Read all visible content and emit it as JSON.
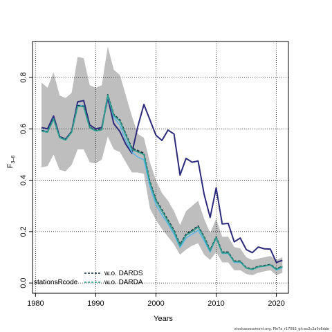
{
  "chart_data": {
    "type": "line",
    "xlabel": "Years",
    "ylabel_main": "F",
    "ylabel_sub": "3–6",
    "xlim": [
      1979.5,
      2022
    ],
    "ylim": [
      -0.04,
      0.94
    ],
    "x_ticks": [
      1980,
      1990,
      2000,
      2010,
      2020
    ],
    "y_ticks": [
      0.0,
      0.2,
      0.4,
      0.6,
      0.8
    ],
    "y_tick_labels": [
      "0.0",
      "0.2",
      "0.4",
      "0.6",
      "0.8"
    ],
    "grid": true,
    "legend": {
      "position": "bottom-left",
      "title": "stationsRcode",
      "entries": [
        "w.o. DARDS",
        "w.o. DARDA"
      ]
    },
    "credit": "stockassessment.org, Ple7a_r17092_git:ec2c2a0c6dde",
    "x": [
      1981,
      1982,
      1983,
      1984,
      1985,
      1986,
      1987,
      1988,
      1989,
      1990,
      1991,
      1992,
      1993,
      1994,
      1995,
      1996,
      1997,
      1998,
      1999,
      2000,
      2001,
      2002,
      2003,
      2004,
      2005,
      2006,
      2007,
      2008,
      2009,
      2010,
      2011,
      2012,
      2013,
      2014,
      2015,
      2016,
      2017,
      2018,
      2019,
      2020,
      2021
    ],
    "band": {
      "upper": [
        0.78,
        0.76,
        0.82,
        0.73,
        0.72,
        0.74,
        0.88,
        0.875,
        0.77,
        0.76,
        0.77,
        0.92,
        0.83,
        0.81,
        0.73,
        0.65,
        0.58,
        0.565,
        0.47,
        0.4,
        0.35,
        0.32,
        0.28,
        0.225,
        0.28,
        0.3,
        0.32,
        0.25,
        0.195,
        0.25,
        0.18,
        0.18,
        0.14,
        0.135,
        0.1,
        0.09,
        0.095,
        0.1,
        0.105,
        0.09,
        0.1
      ],
      "lower": [
        0.45,
        0.455,
        0.5,
        0.44,
        0.435,
        0.46,
        0.52,
        0.52,
        0.47,
        0.465,
        0.48,
        0.57,
        0.52,
        0.51,
        0.47,
        0.43,
        0.43,
        0.425,
        0.29,
        0.245,
        0.21,
        0.18,
        0.15,
        0.11,
        0.13,
        0.145,
        0.155,
        0.11,
        0.09,
        0.12,
        0.08,
        0.08,
        0.05,
        0.05,
        0.035,
        0.03,
        0.04,
        0.045,
        0.05,
        0.03,
        0.04
      ]
    },
    "series": [
      {
        "name": "",
        "color": "#2a2a7a",
        "style": "solid",
        "values": [
          0.605,
          0.6,
          0.65,
          0.57,
          0.56,
          0.59,
          0.705,
          0.71,
          0.615,
          0.6,
          0.605,
          0.72,
          0.62,
          0.59,
          0.54,
          0.505,
          0.61,
          0.695,
          0.635,
          0.575,
          0.555,
          0.595,
          0.58,
          0.42,
          0.485,
          0.47,
          0.475,
          0.345,
          0.255,
          0.37,
          0.23,
          0.232,
          0.16,
          0.175,
          0.13,
          0.118,
          0.14,
          0.133,
          0.132,
          0.08,
          0.088
        ]
      },
      {
        "name": "",
        "color": "#5bb8e6",
        "style": "solid",
        "values": [
          0.595,
          0.59,
          0.64,
          0.568,
          0.558,
          0.588,
          0.692,
          0.69,
          0.604,
          0.592,
          0.597,
          0.728,
          0.645,
          0.615,
          0.555,
          0.51,
          0.49,
          0.48,
          0.375,
          0.305,
          0.265,
          0.23,
          0.19,
          0.138,
          0.175,
          0.19,
          0.205,
          0.165,
          0.12,
          0.175,
          0.115,
          0.115,
          0.08,
          0.08,
          0.058,
          0.052,
          0.062,
          0.065,
          0.07,
          0.05,
          0.06
        ]
      },
      {
        "name": "w.o. DARDS",
        "color": "#0a2a3a",
        "style": "dashed",
        "values": [
          0.593,
          0.589,
          0.64,
          0.568,
          0.558,
          0.589,
          0.69,
          0.688,
          0.606,
          0.594,
          0.598,
          0.733,
          0.656,
          0.635,
          0.58,
          0.525,
          0.515,
          0.505,
          0.395,
          0.325,
          0.285,
          0.245,
          0.205,
          0.15,
          0.19,
          0.205,
          0.222,
          0.18,
          0.128,
          0.18,
          0.12,
          0.12,
          0.085,
          0.085,
          0.06,
          0.055,
          0.065,
          0.068,
          0.072,
          0.055,
          0.065
        ]
      },
      {
        "name": "w.o. DARDA",
        "color": "#2e9e8e",
        "style": "solid",
        "values": [
          0.591,
          0.587,
          0.638,
          0.566,
          0.556,
          0.587,
          0.688,
          0.686,
          0.604,
          0.592,
          0.596,
          0.731,
          0.652,
          0.631,
          0.575,
          0.52,
          0.51,
          0.5,
          0.39,
          0.32,
          0.28,
          0.24,
          0.2,
          0.145,
          0.186,
          0.2,
          0.218,
          0.176,
          0.125,
          0.177,
          0.117,
          0.117,
          0.083,
          0.083,
          0.058,
          0.053,
          0.063,
          0.066,
          0.07,
          0.053,
          0.063
        ]
      }
    ]
  }
}
